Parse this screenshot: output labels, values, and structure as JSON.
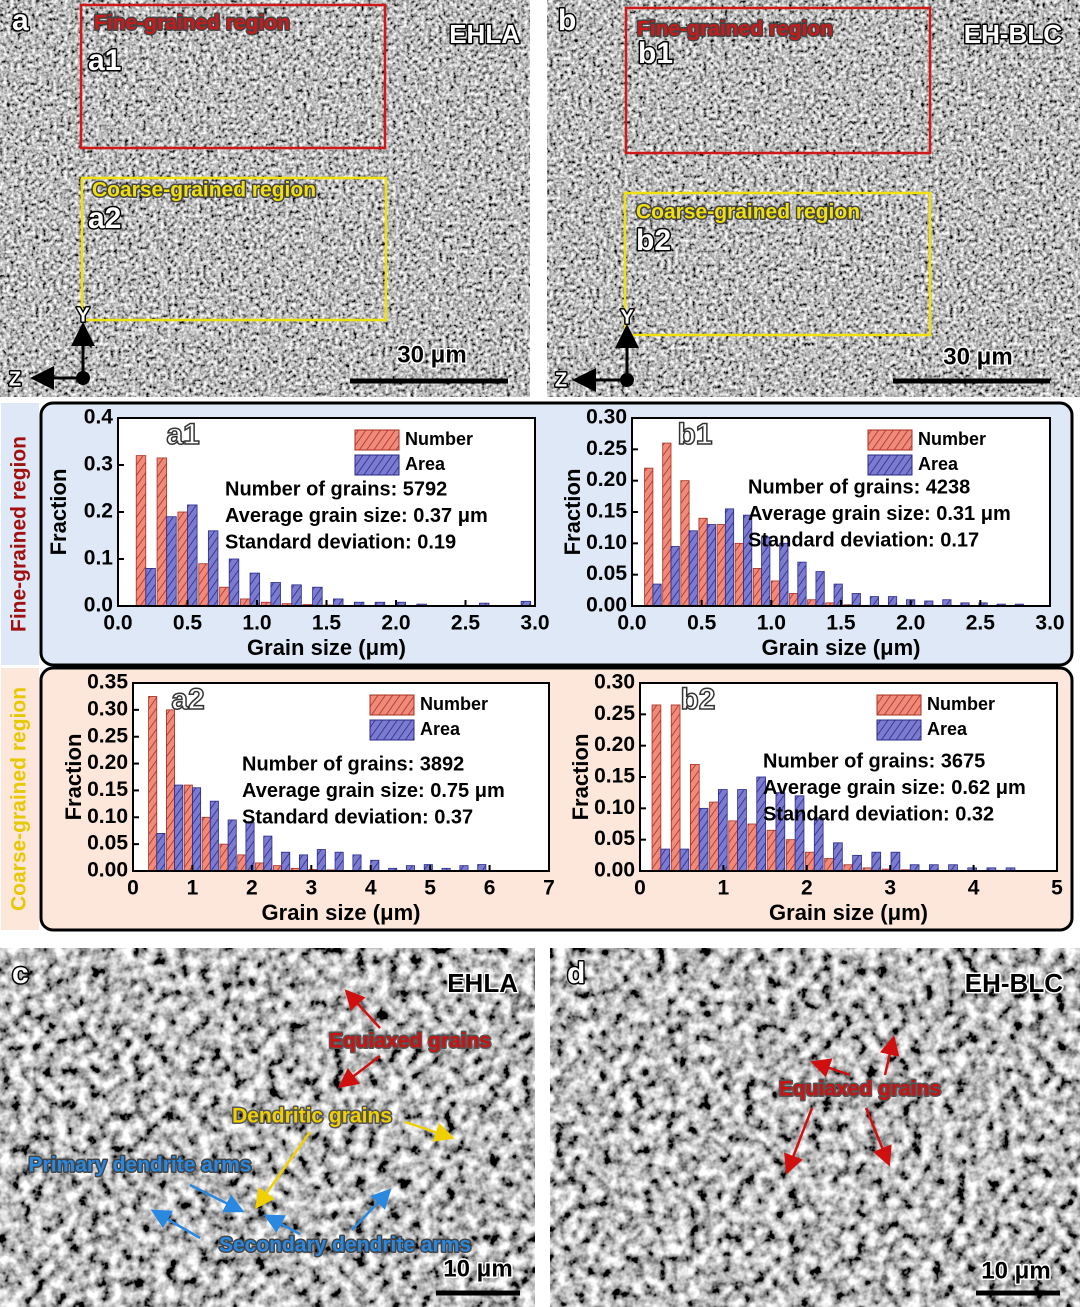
{
  "panels": [
    {
      "letter": "a",
      "process": "EHLA",
      "regions": [
        {
          "title": "Fine-grained region",
          "id": "a1"
        },
        {
          "title": "Coarse-grained region",
          "id": "a2"
        }
      ],
      "scale_bar": "30 μm",
      "axes": [
        "Y",
        "Z"
      ]
    },
    {
      "letter": "b",
      "process": "EH-BLC",
      "regions": [
        {
          "title": "Fine-grained region",
          "id": "b1"
        },
        {
          "title": "Coarse-grained region",
          "id": "b2"
        }
      ],
      "scale_bar": "30 μm",
      "axes": [
        "Y",
        "Z"
      ]
    },
    {
      "letter": "c",
      "process": "EHLA",
      "annotations": [
        "Equiaxed grains",
        "Dendritic grains",
        "Primary dendrite arms",
        "Secondary dendrite arms"
      ],
      "scale_bar": "10 μm"
    },
    {
      "letter": "d",
      "process": "EH-BLC",
      "annotations": [
        "Equiaxed grains"
      ],
      "scale_bar": "10 μm"
    }
  ],
  "row_labels": [
    "Fine-grained region",
    "Coarse-grained region"
  ],
  "chart_data": [
    {
      "type": "bar",
      "title": "a1",
      "xlabel": "Grain size (μm)",
      "ylabel": "Fraction",
      "x": [
        0.2,
        0.35,
        0.5,
        0.65,
        0.8,
        0.95,
        1.1,
        1.25,
        1.4,
        1.55,
        1.7,
        1.85,
        2.0,
        2.15,
        2.3,
        2.45,
        2.6,
        2.75,
        2.9
      ],
      "series": [
        {
          "name": "Number",
          "color": "#f08a7a",
          "values": [
            0.32,
            0.315,
            0.2,
            0.09,
            0.04,
            0.015,
            0.008,
            0.005,
            0.003,
            0.002,
            0.001,
            0.001,
            0.001,
            0,
            0,
            0,
            0,
            0,
            0
          ]
        },
        {
          "name": "Area",
          "color": "#7b7bd0",
          "values": [
            0.08,
            0.19,
            0.215,
            0.16,
            0.1,
            0.07,
            0.05,
            0.045,
            0.04,
            0.015,
            0.008,
            0.008,
            0.008,
            0.004,
            0,
            0,
            0.006,
            0,
            0.01
          ]
        }
      ],
      "annotations": [
        "Number of grains: 5792",
        "Average grain size: 0.37 μm",
        "Standard deviation: 0.19"
      ],
      "xlim": [
        0,
        3
      ],
      "ylim": [
        0,
        0.4
      ],
      "xticks": [
        {
          "value": 0,
          "label": "0.0"
        },
        0.5,
        {
          "value": 1,
          "label": "1.0"
        },
        1.5,
        {
          "value": 2,
          "label": "2.0"
        },
        2.5,
        {
          "value": 3,
          "label": "3.0"
        }
      ],
      "yticks": [
        {
          "value": 0,
          "label": "0.0"
        },
        0.1,
        0.2,
        0.3,
        0.4
      ]
    },
    {
      "type": "bar",
      "title": "b1",
      "xlabel": "Grain size (μm)",
      "ylabel": "Fraction",
      "x": [
        0.15,
        0.28,
        0.41,
        0.54,
        0.67,
        0.8,
        0.93,
        1.06,
        1.19,
        1.32,
        1.45,
        1.58,
        1.71,
        1.84,
        1.97,
        2.1,
        2.23,
        2.36,
        2.49,
        2.62,
        2.75
      ],
      "series": [
        {
          "name": "Number",
          "color": "#f08a7a",
          "values": [
            0.22,
            0.26,
            0.2,
            0.14,
            0.13,
            0.1,
            0.06,
            0.04,
            0.02,
            0.01,
            0.005,
            0.002,
            0.001,
            0,
            0,
            0,
            0,
            0,
            0,
            0,
            0
          ]
        },
        {
          "name": "Area",
          "color": "#7b7bd0",
          "values": [
            0.035,
            0.095,
            0.12,
            0.13,
            0.155,
            0.145,
            0.11,
            0.1,
            0.07,
            0.055,
            0.035,
            0.02,
            0.015,
            0.015,
            0.01,
            0.008,
            0.01,
            0.005,
            0.005,
            0.003,
            0.003
          ]
        }
      ],
      "annotations": [
        "Number of grains: 4238",
        "Average grain size: 0.31 μm",
        "Standard deviation: 0.17"
      ],
      "xlim": [
        0,
        3
      ],
      "ylim": [
        0,
        0.3
      ],
      "xticks": [
        {
          "value": 0,
          "label": "0.0"
        },
        0.5,
        {
          "value": 1,
          "label": "1.0"
        },
        1.5,
        {
          "value": 2,
          "label": "2.0"
        },
        2.5,
        {
          "value": 3,
          "label": "3.0"
        }
      ],
      "yticks": [
        {
          "value": 0,
          "label": "0.00"
        },
        0.05,
        {
          "value": 0.1,
          "label": "0.10"
        },
        0.15,
        {
          "value": 0.2,
          "label": "0.20"
        },
        0.25,
        {
          "value": 0.3,
          "label": "0.30"
        }
      ]
    },
    {
      "type": "bar",
      "title": "a2",
      "xlabel": "Grain size (μm)",
      "ylabel": "Fraction",
      "x": [
        0.4,
        0.7,
        1.0,
        1.3,
        1.6,
        1.9,
        2.2,
        2.5,
        2.8,
        3.1,
        3.4,
        3.7,
        4.0,
        4.3,
        4.6,
        4.9,
        5.2,
        5.5,
        5.8
      ],
      "series": [
        {
          "name": "Number",
          "color": "#f08a7a",
          "values": [
            0.325,
            0.3,
            0.16,
            0.1,
            0.05,
            0.03,
            0.015,
            0.01,
            0.005,
            0.003,
            0.002,
            0.001,
            0,
            0,
            0,
            0,
            0,
            0,
            0
          ]
        },
        {
          "name": "Area",
          "color": "#7b7bd0",
          "values": [
            0.07,
            0.16,
            0.155,
            0.13,
            0.095,
            0.09,
            0.065,
            0.035,
            0.03,
            0.04,
            0.035,
            0.03,
            0.02,
            0.005,
            0.01,
            0.012,
            0.005,
            0.01,
            0.012
          ]
        }
      ],
      "annotations": [
        "Number of grains: 3892",
        "Average grain size: 0.75 μm",
        "Standard deviation: 0.37"
      ],
      "xlim": [
        0,
        7
      ],
      "ylim": [
        0,
        0.35
      ],
      "xticks": [
        0,
        1,
        2,
        3,
        4,
        5,
        6,
        7
      ],
      "yticks": [
        {
          "value": 0,
          "label": "0.00"
        },
        0.05,
        {
          "value": 0.1,
          "label": "0.10"
        },
        0.15,
        {
          "value": 0.2,
          "label": "0.20"
        },
        0.25,
        {
          "value": 0.3,
          "label": "0.30"
        },
        0.35
      ]
    },
    {
      "type": "bar",
      "title": "b2",
      "xlabel": "Grain size (μm)",
      "ylabel": "Fraction",
      "x": [
        0.25,
        0.48,
        0.71,
        0.94,
        1.17,
        1.4,
        1.63,
        1.86,
        2.09,
        2.32,
        2.55,
        2.78,
        3.01,
        3.24,
        3.47,
        3.7,
        3.93,
        4.16,
        4.39
      ],
      "series": [
        {
          "name": "Number",
          "color": "#f08a7a",
          "values": [
            0.265,
            0.265,
            0.17,
            0.11,
            0.08,
            0.075,
            0.065,
            0.05,
            0.03,
            0.02,
            0.01,
            0.005,
            0.003,
            0.002,
            0,
            0,
            0,
            0,
            0
          ]
        },
        {
          "name": "Area",
          "color": "#7b7bd0",
          "values": [
            0.035,
            0.035,
            0.1,
            0.13,
            0.13,
            0.15,
            0.125,
            0.12,
            0.085,
            0.045,
            0.025,
            0.03,
            0.03,
            0.01,
            0.01,
            0.01,
            0.005,
            0.005,
            0.005
          ]
        }
      ],
      "annotations": [
        "Number of grains: 3675",
        "Average grain size: 0.62 μm",
        "Standard deviation: 0.32"
      ],
      "xlim": [
        0,
        5
      ],
      "ylim": [
        0,
        0.3
      ],
      "xticks": [
        0,
        1,
        2,
        3,
        4,
        5
      ],
      "yticks": [
        {
          "value": 0,
          "label": "0.00"
        },
        0.05,
        {
          "value": 0.1,
          "label": "0.10"
        },
        0.15,
        {
          "value": 0.2,
          "label": "0.20"
        },
        0.25,
        {
          "value": 0.3,
          "label": "0.30"
        }
      ]
    }
  ]
}
